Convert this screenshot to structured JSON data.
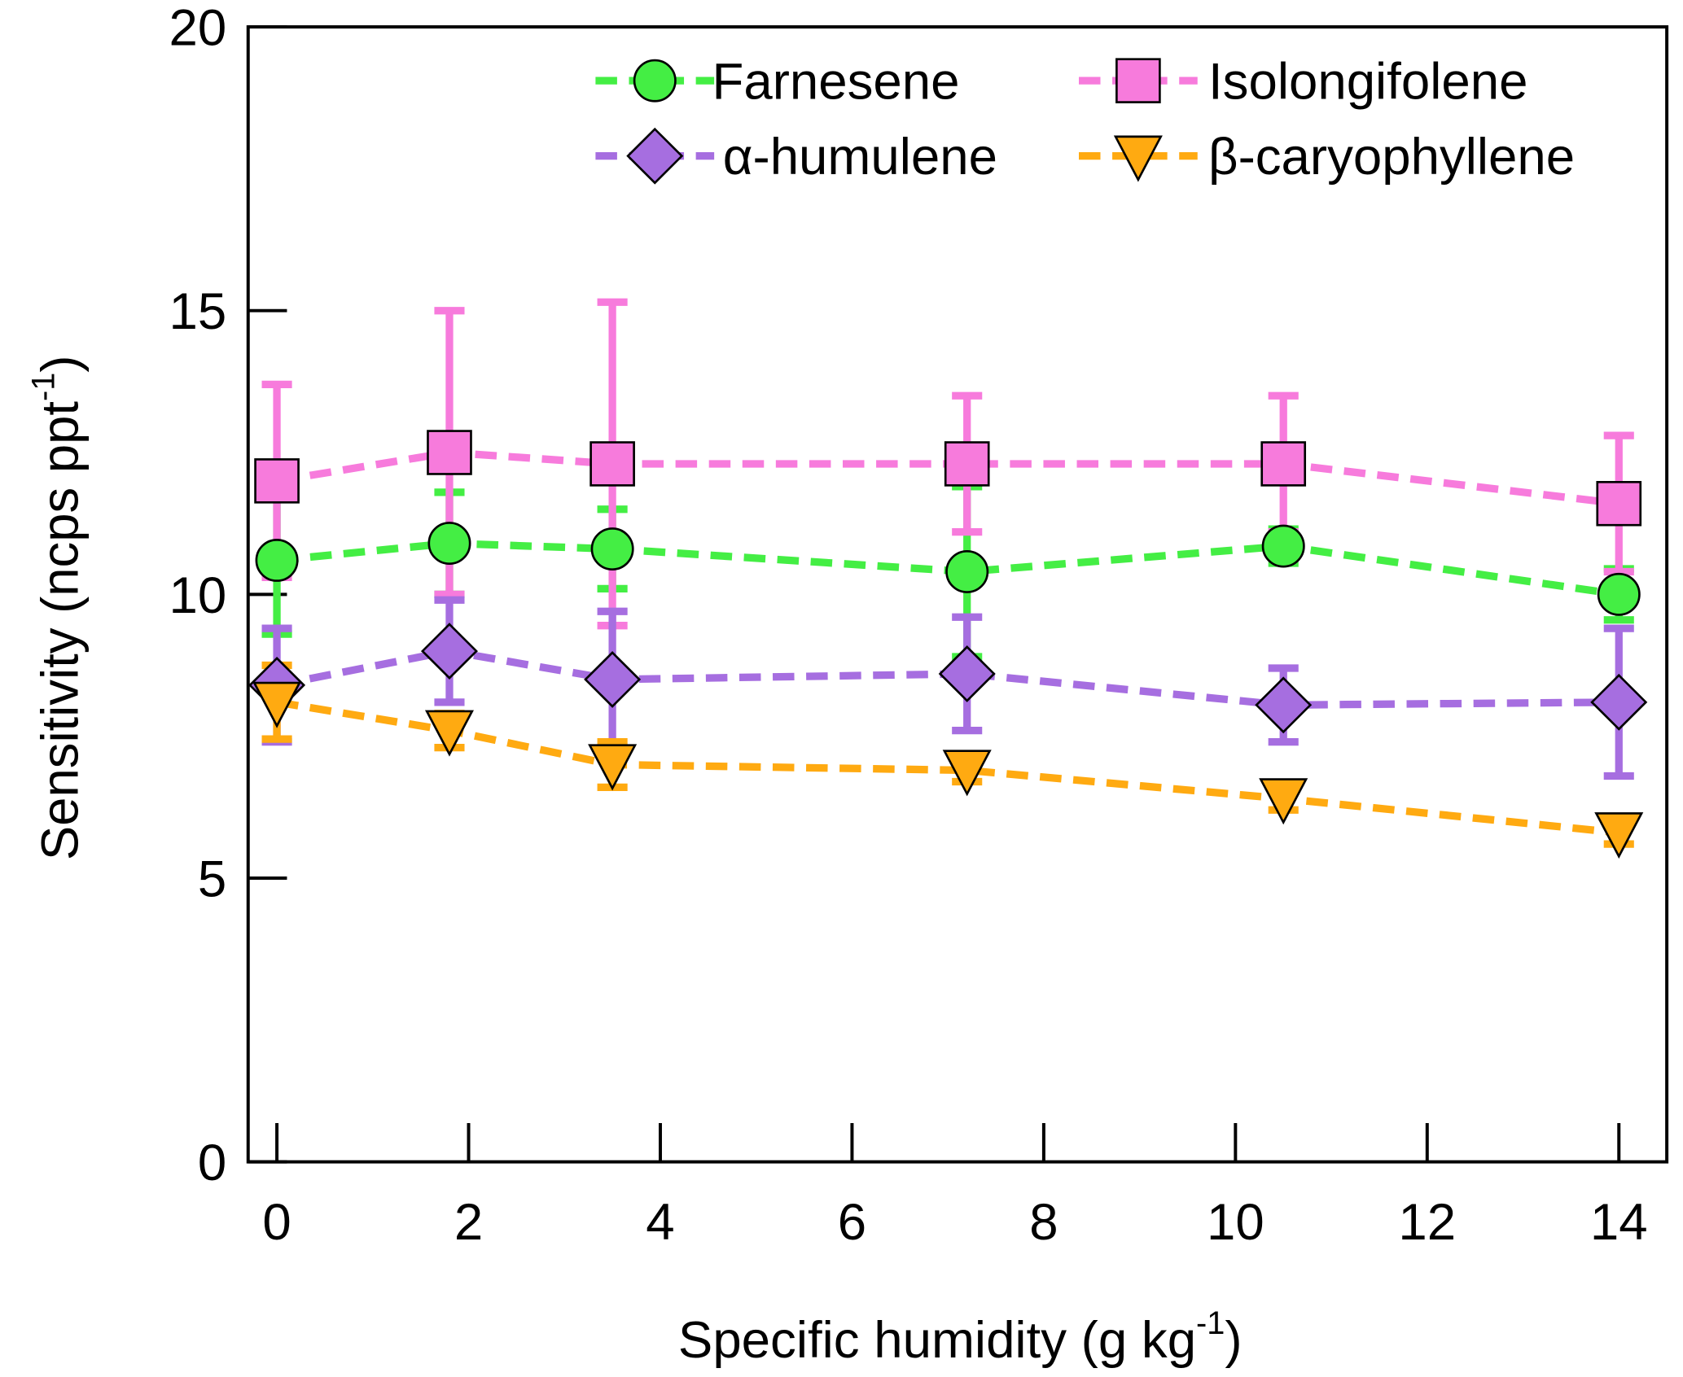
{
  "chart_data": {
    "type": "line",
    "xlabel": [
      "Specific humidity (g kg",
      "-1",
      ")"
    ],
    "ylabel": [
      "Sensitivity (ncps ppt",
      "-1",
      ")"
    ],
    "x": [
      0,
      1.8,
      3.5,
      7.2,
      10.5,
      14
    ],
    "xlim": [
      -0.3,
      14.5
    ],
    "xticks": [
      0,
      2,
      4,
      6,
      8,
      10,
      12,
      14
    ],
    "ylim": [
      0,
      20
    ],
    "yticks": [
      0,
      5,
      10,
      15,
      20
    ],
    "series": [
      {
        "name": "Farnesene",
        "color": "#44ee44",
        "marker": "circle",
        "values": [
          10.6,
          10.9,
          10.8,
          10.4,
          10.85,
          10.0
        ],
        "errors": [
          1.3,
          0.9,
          0.7,
          1.5,
          0.3,
          0.45
        ]
      },
      {
        "name": "Isolongifolene",
        "color": "#f77bdc",
        "marker": "square",
        "values": [
          12.0,
          12.5,
          12.3,
          12.3,
          12.3,
          11.6
        ],
        "errors": [
          1.7,
          2.5,
          2.85,
          1.2,
          1.2,
          1.2
        ]
      },
      {
        "name": "α-humulene",
        "color": "#a66ee0",
        "marker": "diamond",
        "values": [
          8.4,
          9.0,
          8.5,
          8.6,
          8.05,
          8.1
        ],
        "errors": [
          1.0,
          0.9,
          1.2,
          1.0,
          0.65,
          1.3
        ]
      },
      {
        "name": "β-caryophyllene",
        "color": "#ffaa11",
        "marker": "triangle-down",
        "values": [
          8.1,
          7.6,
          7.0,
          6.9,
          6.4,
          5.8
        ],
        "errors": [
          0.65,
          0.3,
          0.4,
          0.2,
          0.2,
          0.2
        ]
      }
    ]
  }
}
